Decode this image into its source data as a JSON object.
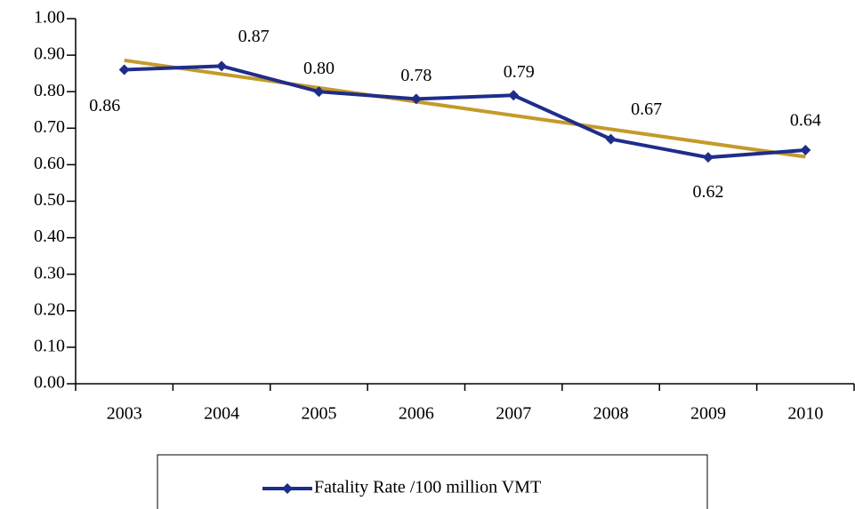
{
  "chart_data": {
    "type": "line",
    "categories": [
      "2003",
      "2004",
      "2005",
      "2006",
      "2007",
      "2008",
      "2009",
      "2010"
    ],
    "series": [
      {
        "name": "Fatality Rate /100 million VMT",
        "color": "#1f2d8a",
        "values": [
          0.86,
          0.87,
          0.8,
          0.78,
          0.79,
          0.67,
          0.62,
          0.64
        ],
        "value_labels": [
          "0.86",
          "0.87",
          "0.80",
          "0.78",
          "0.79",
          "0.67",
          "0.62",
          "0.64"
        ]
      }
    ],
    "trendline": "linear",
    "trendline_color": "#c49a2a",
    "ylim": [
      0,
      1
    ],
    "yticks": [
      {
        "value": 0,
        "label": "0.00"
      },
      {
        "value": 0.1,
        "label": "0.10"
      },
      {
        "value": 0.2,
        "label": "0.20"
      },
      {
        "value": 0.3,
        "label": "0.30"
      },
      {
        "value": 0.4,
        "label": "0.40"
      },
      {
        "value": 0.5,
        "label": "0.50"
      },
      {
        "value": 0.6,
        "label": "0.60"
      },
      {
        "value": 0.7,
        "label": "0.70"
      },
      {
        "value": 0.8,
        "label": "0.80"
      },
      {
        "value": 0.9,
        "label": "0.90"
      },
      {
        "value": 1,
        "label": "1.00"
      }
    ],
    "grid": false,
    "legend": "bottom"
  }
}
